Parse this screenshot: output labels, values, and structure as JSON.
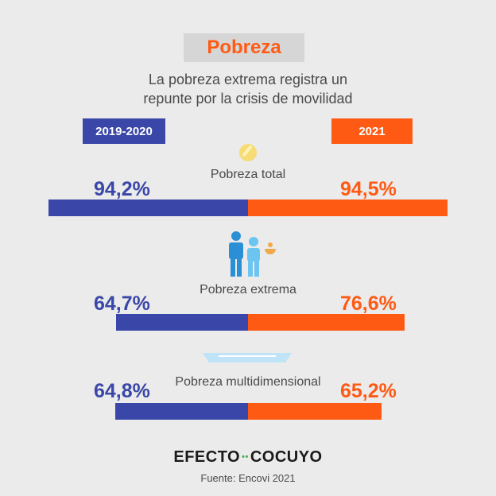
{
  "header": {
    "title": "Pobreza",
    "subtitle": "La pobreza extrema registra un\nrepunte por la crisis de movilidad"
  },
  "colors": {
    "series_2019_2020": "#3a47a8",
    "series_2021": "#ff5a14",
    "title_bg": "#d6d6d6"
  },
  "icons": [
    "coin-icon",
    "family-icon",
    "road-icon"
  ],
  "chart_data": {
    "type": "bar",
    "categories": [
      "Pobreza total",
      "Pobreza extrema",
      "Pobreza multidimensional"
    ],
    "series": [
      {
        "name": "2019-2020",
        "values": [
          94.2,
          64.7,
          64.8
        ],
        "labels": [
          "94,2%",
          "64,7%",
          "64,8%"
        ]
      },
      {
        "name": "2021",
        "values": [
          94.5,
          76.6,
          65.2
        ],
        "labels": [
          "94,5%",
          "76,6%",
          "65,2%"
        ]
      }
    ],
    "legend_placement": "top",
    "grid": false
  },
  "footer": {
    "logo_left": "EFECTO",
    "logo_dots": "••",
    "logo_right": "COCUYO",
    "source": "Fuente: Encovi 2021"
  }
}
